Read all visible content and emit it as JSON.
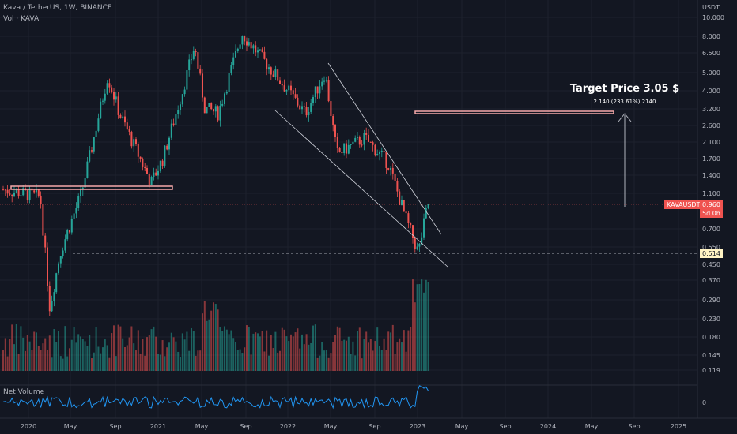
{
  "header": {
    "symbol_line": "Kava / TetherUS, 1W, BINANCE",
    "vol_line": "Vol · KAVA",
    "currency": "USDT"
  },
  "price_axis": {
    "ticks": [
      "10.000",
      "8.000",
      "6.500",
      "5.000",
      "4.000",
      "3.200",
      "2.600",
      "2.100",
      "1.700",
      "1.400",
      "1.100",
      "0.700",
      "0.550",
      "0.450",
      "0.370",
      "0.290",
      "0.230",
      "0.180",
      "0.145",
      "0.119"
    ]
  },
  "time_axis": {
    "ticks": [
      "2020",
      "May",
      "Sep",
      "2021",
      "May",
      "Sep",
      "2022",
      "May",
      "Sep",
      "2023",
      "May",
      "Sep",
      "2024",
      "May",
      "Sep",
      "2025"
    ]
  },
  "annotations": {
    "target_title": "Target Price 3.05 $",
    "target_sub": "2.140 (233.61%) 2140"
  },
  "price_tags": {
    "symbol_tag": "KAVAUSDT",
    "last_price": "0.960",
    "countdown": "5d 0h",
    "support_level": "0.514"
  },
  "net_volume": {
    "label": "Net Volume",
    "zero_label": "0"
  },
  "colors": {
    "background": "#131722",
    "up": "#26a69a",
    "down": "#ef5350",
    "channel": "#d1d4dc",
    "net_volume": "#2196f3",
    "highlight_box": "#f7a9a9",
    "support_tag": "#fff3c4"
  },
  "chart_data": {
    "type": "candlestick",
    "timeframe": "1W",
    "y_scale": "log",
    "ylim": [
      0.11,
      11
    ],
    "weekly_close_path": [
      {
        "t": "2020-01",
        "p": 1.15
      },
      {
        "t": "2020-03",
        "p": 1.05
      },
      {
        "t": "2020-03-mid",
        "p": 0.26
      },
      {
        "t": "2020-04",
        "p": 0.52
      },
      {
        "t": "2020-06",
        "p": 1.1
      },
      {
        "t": "2020-07",
        "p": 4.8
      },
      {
        "t": "2020-08",
        "p": 3.0
      },
      {
        "t": "2020-10",
        "p": 1.25
      },
      {
        "t": "2020-11",
        "p": 1.7
      },
      {
        "t": "2021-01",
        "p": 4.0
      },
      {
        "t": "2021-04",
        "p": 7.0
      },
      {
        "t": "2021-05",
        "p": 3.2
      },
      {
        "t": "2021-07",
        "p": 3.0
      },
      {
        "t": "2021-09",
        "p": 8.2
      },
      {
        "t": "2021-10",
        "p": 6.0
      },
      {
        "t": "2022-01",
        "p": 3.9
      },
      {
        "t": "2022-02",
        "p": 3.0
      },
      {
        "t": "2022-04",
        "p": 5.0
      },
      {
        "t": "2022-05",
        "p": 1.8
      },
      {
        "t": "2022-07",
        "p": 2.2
      },
      {
        "t": "2022-09",
        "p": 1.6
      },
      {
        "t": "2022-10",
        "p": 0.85
      },
      {
        "t": "2022-12",
        "p": 0.52
      },
      {
        "t": "2023-01",
        "p": 0.96
      }
    ],
    "horizontal_levels": [
      {
        "name": "resistance-box",
        "value": 1.15
      },
      {
        "name": "support",
        "value": 0.514
      },
      {
        "name": "last-price",
        "value": 0.96
      },
      {
        "name": "target",
        "value": 3.05
      }
    ]
  }
}
